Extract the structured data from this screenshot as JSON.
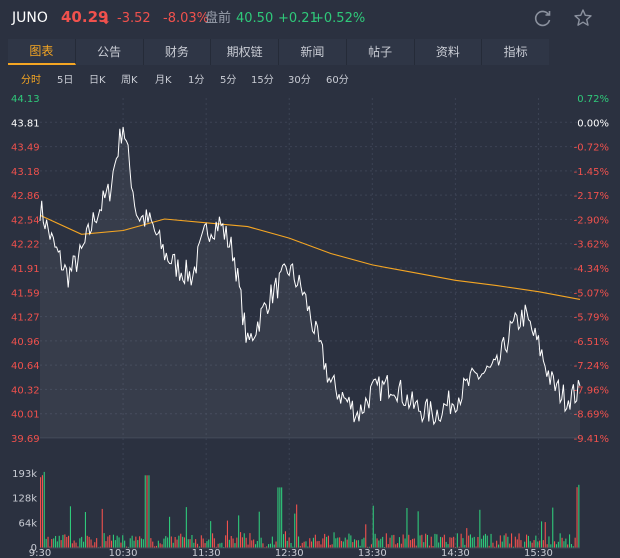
{
  "header": {
    "symbol": "JUNO",
    "price": "40.29",
    "arrow": "⬇",
    "change": "-3.52",
    "change_pct": "-8.03%",
    "afterhours_label": "盘前",
    "afterhours_price": "40.50",
    "afterhours_change": "+0.21",
    "afterhours_pct": "+0.52%",
    "refresh_icon": "refresh-icon",
    "star_icon": "star-icon"
  },
  "tabs": [
    {
      "label": "图表",
      "active": true
    },
    {
      "label": "公告"
    },
    {
      "label": "财务"
    },
    {
      "label": "期权链"
    },
    {
      "label": "新闻"
    },
    {
      "label": "帖子"
    },
    {
      "label": "资料"
    },
    {
      "label": "指标"
    }
  ],
  "periods": [
    {
      "label": "分时",
      "active": true
    },
    {
      "label": "5日"
    },
    {
      "label": "日K"
    },
    {
      "label": "周K"
    },
    {
      "label": "月K"
    },
    {
      "label": "1分"
    },
    {
      "label": "5分"
    },
    {
      "label": "15分"
    },
    {
      "label": "30分"
    },
    {
      "label": "60分"
    }
  ],
  "colors": {
    "up": "#2fc97a",
    "down": "#f0514d",
    "price_line": "#ffffff",
    "avg_line": "#f5a623",
    "background": "#2b3140",
    "grid": "#3c4354"
  },
  "chart_data": {
    "type": "line",
    "title": "",
    "xlabel": "",
    "ylabel": "",
    "prev_close": 43.81,
    "y_ticks": [
      "44.13",
      "43.81",
      "43.49",
      "43.18",
      "42.86",
      "42.54",
      "42.22",
      "41.91",
      "41.59",
      "41.27",
      "40.96",
      "40.64",
      "40.32",
      "40.01",
      "39.69"
    ],
    "pct_ticks": [
      "0.72%",
      "0.00%",
      "-0.72%",
      "-1.45%",
      "-2.17%",
      "-2.90%",
      "-3.62%",
      "-4.34%",
      "-5.07%",
      "-5.79%",
      "-6.51%",
      "-7.24%",
      "-7.96%",
      "-8.69%",
      "-9.41%"
    ],
    "ylim": [
      39.69,
      44.13
    ],
    "x_labels": [
      "9:30",
      "10:30",
      "11:30",
      "12:30",
      "13:30",
      "14:30",
      "15:30"
    ],
    "volume_ticks": [
      "193k",
      "128k",
      "64k",
      "0"
    ],
    "series": [
      {
        "kind": "price",
        "x": [
          "9:30",
          "9:40",
          "9:50",
          "10:00",
          "10:10",
          "10:20",
          "10:30",
          "10:35",
          "10:40",
          "10:50",
          "11:00",
          "11:10",
          "11:20",
          "11:30",
          "11:40",
          "11:50",
          "12:00",
          "12:15",
          "12:30",
          "12:40",
          "12:50",
          "13:00",
          "13:10",
          "13:20",
          "13:30",
          "13:45",
          "14:00",
          "14:15",
          "14:30",
          "14:45",
          "15:00",
          "15:10",
          "15:20",
          "15:30",
          "15:40",
          "15:50",
          "16:00"
        ],
        "values": [
          42.7,
          42.2,
          41.8,
          42.1,
          42.6,
          42.9,
          43.8,
          43.2,
          42.6,
          42.5,
          42.1,
          41.9,
          41.8,
          42.4,
          42.5,
          42.1,
          40.9,
          41.5,
          41.9,
          41.6,
          41.0,
          40.4,
          40.2,
          40.0,
          40.3,
          40.4,
          40.1,
          40.0,
          40.2,
          40.5,
          40.6,
          41.1,
          41.3,
          40.9,
          40.4,
          40.2,
          40.3
        ]
      },
      {
        "kind": "average",
        "x": [
          "9:30",
          "10:00",
          "10:30",
          "11:00",
          "11:30",
          "12:00",
          "12:30",
          "13:00",
          "13:30",
          "14:00",
          "14:30",
          "15:00",
          "15:30",
          "16:00"
        ],
        "values": [
          42.6,
          42.35,
          42.4,
          42.55,
          42.5,
          42.45,
          42.3,
          42.1,
          41.95,
          41.85,
          41.75,
          41.68,
          41.6,
          41.5
        ]
      }
    ],
    "volume": {
      "note": "per-minute volume bars, colored up/down",
      "max": 193
    }
  }
}
